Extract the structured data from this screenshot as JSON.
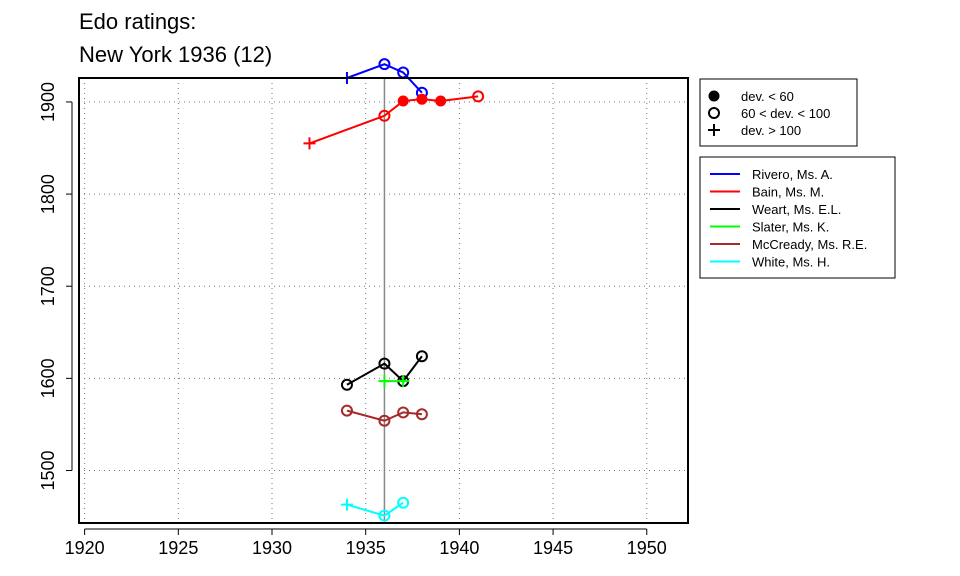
{
  "chart_data": {
    "type": "line",
    "title_lines": [
      "Edo ratings:",
      "New York 1936 (12)"
    ],
    "xlabel": "",
    "ylabel": "",
    "xlim": [
      1919.7,
      1952.2
    ],
    "ylim": [
      1443,
      1926
    ],
    "x_ticks": [
      1920,
      1925,
      1930,
      1935,
      1940,
      1945,
      1950
    ],
    "y_ticks": [
      1500,
      1600,
      1700,
      1800,
      1900
    ],
    "grid": "dotted",
    "reference_line_x": 1936,
    "symbol_legend": [
      {
        "marker": "filled-circle",
        "label": "dev. < 60"
      },
      {
        "marker": "open-circle",
        "label": "60 < dev. < 100"
      },
      {
        "marker": "plus",
        "label": "dev. > 100"
      }
    ],
    "series": [
      {
        "name": "Rivero, Ms. A.",
        "color": "#0000ff",
        "points": [
          {
            "x": 1934,
            "y": 1926,
            "marker": "plus"
          },
          {
            "x": 1936,
            "y": 1941,
            "marker": "open-circle"
          },
          {
            "x": 1937,
            "y": 1932,
            "marker": "open-circle"
          },
          {
            "x": 1938,
            "y": 1910,
            "marker": "open-circle"
          }
        ]
      },
      {
        "name": "Bain, Ms. M.",
        "color": "#ff0000",
        "points": [
          {
            "x": 1932,
            "y": 1855,
            "marker": "plus"
          },
          {
            "x": 1936,
            "y": 1885,
            "marker": "open-circle"
          },
          {
            "x": 1937,
            "y": 1901,
            "marker": "filled-circle"
          },
          {
            "x": 1938,
            "y": 1903,
            "marker": "filled-circle"
          },
          {
            "x": 1939,
            "y": 1901,
            "marker": "filled-circle"
          },
          {
            "x": 1941,
            "y": 1906,
            "marker": "open-circle"
          }
        ]
      },
      {
        "name": "Weart, Ms. E.L.",
        "color": "#000000",
        "points": [
          {
            "x": 1934,
            "y": 1593,
            "marker": "open-circle"
          },
          {
            "x": 1936,
            "y": 1616,
            "marker": "open-circle"
          },
          {
            "x": 1937,
            "y": 1597,
            "marker": "open-circle"
          },
          {
            "x": 1938,
            "y": 1624,
            "marker": "open-circle"
          }
        ]
      },
      {
        "name": "Slater, Ms. K.",
        "color": "#00ff00",
        "points": [
          {
            "x": 1936,
            "y": 1597,
            "marker": "plus"
          },
          {
            "x": 1937,
            "y": 1597,
            "marker": "plus"
          }
        ]
      },
      {
        "name": "McCready, Ms. R.E.",
        "color": "#a52a2a",
        "points": [
          {
            "x": 1934,
            "y": 1565,
            "marker": "open-circle"
          },
          {
            "x": 1936,
            "y": 1554,
            "marker": "open-circle"
          },
          {
            "x": 1937,
            "y": 1563,
            "marker": "open-circle"
          },
          {
            "x": 1938,
            "y": 1561,
            "marker": "open-circle"
          }
        ]
      },
      {
        "name": "White, Ms. H.",
        "color": "#00ffff",
        "points": [
          {
            "x": 1934,
            "y": 1463,
            "marker": "plus"
          },
          {
            "x": 1936,
            "y": 1451,
            "marker": "open-circle"
          },
          {
            "x": 1937,
            "y": 1465,
            "marker": "open-circle"
          }
        ]
      }
    ]
  }
}
